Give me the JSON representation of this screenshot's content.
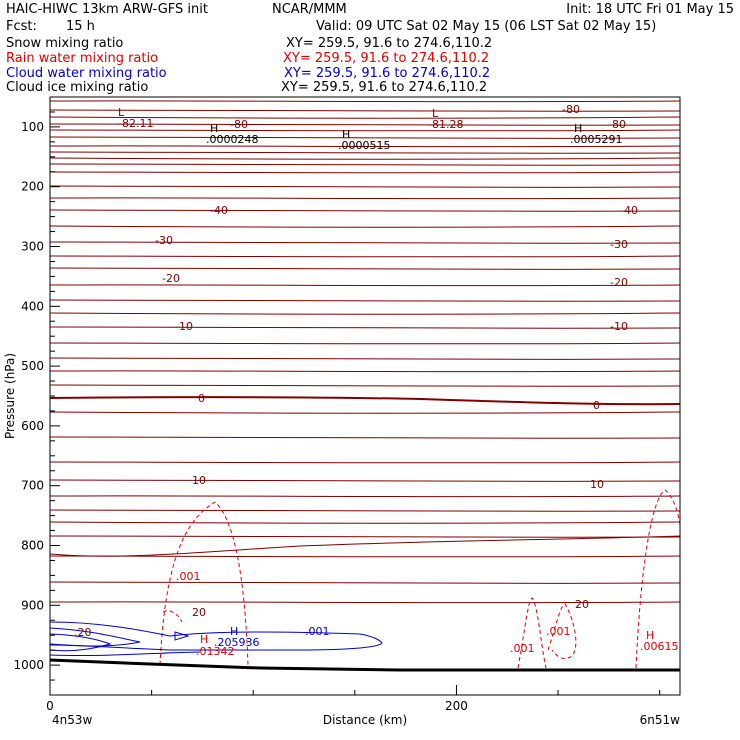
{
  "header": {
    "title": "HAIC-HIWC 13km ARW-GFS init",
    "center": "NCAR/MMM",
    "init": "Init: 18 UTC Fri 01 May 15",
    "fcst_label": "Fcst:",
    "fcst_value": "15 h",
    "valid": "Valid: 09 UTC Sat 02 May 15 (06 LST Sat 02 May 15)",
    "fields": [
      {
        "name": "Snow mixing ratio",
        "xy": "XY= 259.5, 91.6 to 274.6,110.2",
        "color": "#000000"
      },
      {
        "name": "Rain water mixing ratio",
        "xy": "XY= 259.5, 91.6 to 274.6,110.2",
        "color": "#e00000"
      },
      {
        "name": "Cloud water mixing ratio",
        "xy": "XY= 259.5, 91.6 to 274.6,110.2",
        "color": "#0000c8"
      },
      {
        "name": "Cloud ice mixing ratio",
        "xy": "XY= 259.5, 91.6 to 274.6,110.2",
        "color": "#000000"
      }
    ]
  },
  "chart_data": {
    "type": "line",
    "xlabel": "Distance (km)",
    "ylabel": "Pressure (hPa)",
    "xlim": [
      0,
      310
    ],
    "x_ticks": [
      0,
      200
    ],
    "ylim": [
      1050,
      50
    ],
    "y_ticks": [
      100,
      200,
      300,
      400,
      500,
      600,
      700,
      800,
      900,
      1000
    ],
    "corner_labels": {
      "left": "4n53w",
      "right": "6n51w"
    },
    "temperature_isotherms": {
      "color": "#800000",
      "contour_labels": [
        "-82.11",
        "-80",
        "-81.28",
        "-80",
        "-80",
        "-40",
        "-40",
        "-30",
        "-30",
        "-20",
        "-20",
        "-10",
        "-10",
        "0",
        "0",
        "10",
        "10",
        "20",
        "20"
      ],
      "extrema_labels": [
        "L",
        "L"
      ]
    },
    "snow_extrema": [
      {
        "label": "H",
        "value": ".0000248"
      },
      {
        "label": "H",
        "value": ".0000515"
      },
      {
        "label": "H",
        "value": ".0005291"
      }
    ],
    "rain_water": {
      "color": "#e00000",
      "contour_labels": [
        ".001",
        ".001",
        ".001"
      ],
      "extrema": [
        {
          "label": "H",
          "value": ".01342"
        },
        {
          "label": "H",
          "value": ".00615"
        }
      ]
    },
    "cloud_water": {
      "color": "#0000c8",
      "contour_labels": [
        ".001"
      ],
      "extrema": [
        {
          "label": "H",
          "value": ".205936"
        }
      ]
    },
    "inline_labels": [
      ".20"
    ]
  }
}
